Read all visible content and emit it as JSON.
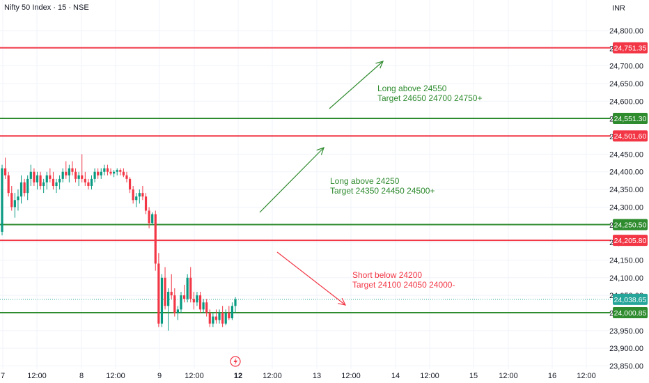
{
  "header": {
    "title": "Nifty 50 Index · 15 · NSE",
    "currency": "INR"
  },
  "colors": {
    "up": "#089981",
    "down": "#f23645",
    "grid": "#f0f3fa",
    "resistance": "#f23645",
    "support": "#2e8b2e",
    "last_price": "#26a69a",
    "axis_text": "#131722",
    "bolt": "#f23645"
  },
  "chart_data": {
    "type": "candlestick",
    "y_axis": {
      "min": 23850,
      "max": 24830,
      "ticks": [
        "24,800.00",
        "24,750.00",
        "24,700.00",
        "24,650.00",
        "24,600.00",
        "24,550.00",
        "24,500.00",
        "24,450.00",
        "24,400.00",
        "24,350.00",
        "24,300.00",
        "24,250.00",
        "24,200.00",
        "24,150.00",
        "24,100.00",
        "24,050.00",
        "24,000.00",
        "23,950.00",
        "23,900.00",
        "23,850.00"
      ]
    },
    "x_axis": {
      "ticks": [
        "7",
        "12:00",
        "8",
        "12:00",
        "9",
        "12:00",
        "12",
        "12:00",
        "13",
        "12:00",
        "14",
        "12:00",
        "15",
        "12:00",
        "16",
        "12:00"
      ]
    },
    "horizontal_lines": [
      {
        "value": 24751.35,
        "label": "24,751.35",
        "kind": "resistance"
      },
      {
        "value": 24551.3,
        "label": "24,551.30",
        "kind": "support"
      },
      {
        "value": 24501.6,
        "label": "24,501.60",
        "kind": "resistance"
      },
      {
        "value": 24250.5,
        "label": "24,250.50",
        "kind": "support"
      },
      {
        "value": 24205.8,
        "label": "24,205.80",
        "kind": "resistance"
      },
      {
        "value": 24000.85,
        "label": "24,000.85",
        "kind": "support"
      }
    ],
    "last_price": {
      "value": 24038.65,
      "label": "24,038.65"
    },
    "candles": [
      [
        24230,
        24420,
        24220,
        24410
      ],
      [
        24410,
        24440,
        24380,
        24390
      ],
      [
        24390,
        24400,
        24330,
        24340
      ],
      [
        24340,
        24360,
        24290,
        24300
      ],
      [
        24300,
        24340,
        24270,
        24320
      ],
      [
        24320,
        24350,
        24290,
        24330
      ],
      [
        24330,
        24390,
        24310,
        24370
      ],
      [
        24370,
        24380,
        24330,
        24340
      ],
      [
        24340,
        24390,
        24320,
        24380
      ],
      [
        24380,
        24420,
        24360,
        24400
      ],
      [
        24400,
        24410,
        24360,
        24370
      ],
      [
        24370,
        24400,
        24350,
        24390
      ],
      [
        24390,
        24400,
        24350,
        24360
      ],
      [
        24360,
        24380,
        24340,
        24370
      ],
      [
        24370,
        24400,
        24350,
        24390
      ],
      [
        24390,
        24410,
        24370,
        24380
      ],
      [
        24380,
        24400,
        24350,
        24360
      ],
      [
        24360,
        24380,
        24340,
        24370
      ],
      [
        24370,
        24390,
        24350,
        24380
      ],
      [
        24380,
        24410,
        24370,
        24400
      ],
      [
        24400,
        24430,
        24380,
        24390
      ],
      [
        24390,
        24420,
        24370,
        24410
      ],
      [
        24410,
        24430,
        24390,
        24400
      ],
      [
        24400,
        24410,
        24370,
        24380
      ],
      [
        24380,
        24400,
        24360,
        24390
      ],
      [
        24390,
        24450,
        24370,
        24380
      ],
      [
        24380,
        24400,
        24360,
        24370
      ],
      [
        24370,
        24380,
        24350,
        24360
      ],
      [
        24360,
        24390,
        24350,
        24380
      ],
      [
        24380,
        24410,
        24370,
        24400
      ],
      [
        24400,
        24410,
        24380,
        24390
      ],
      [
        24390,
        24410,
        24380,
        24400
      ],
      [
        24400,
        24420,
        24390,
        24410
      ],
      [
        24410,
        24420,
        24390,
        24400
      ],
      [
        24400,
        24410,
        24390,
        24395
      ],
      [
        24395,
        24405,
        24385,
        24400
      ],
      [
        24400,
        24410,
        24390,
        24405
      ],
      [
        24405,
        24410,
        24390,
        24400
      ],
      [
        24400,
        24410,
        24385,
        24390
      ],
      [
        24390,
        24400,
        24370,
        24380
      ],
      [
        24380,
        24385,
        24340,
        24350
      ],
      [
        24350,
        24360,
        24310,
        24320
      ],
      [
        24320,
        24340,
        24300,
        24330
      ],
      [
        24330,
        24350,
        24310,
        24340
      ],
      [
        24340,
        24360,
        24320,
        24330
      ],
      [
        24330,
        24340,
        24280,
        24290
      ],
      [
        24290,
        24300,
        24240,
        24255
      ],
      [
        24255,
        24285,
        24250,
        24280
      ],
      [
        24280,
        24290,
        24120,
        24140
      ],
      [
        24140,
        24170,
        23960,
        23970
      ],
      [
        23970,
        24110,
        23960,
        24100
      ],
      [
        24100,
        24130,
        24010,
        24020
      ],
      [
        24020,
        24070,
        23950,
        24060
      ],
      [
        24060,
        24110,
        24040,
        24050
      ],
      [
        24050,
        24070,
        23990,
        24000
      ],
      [
        24000,
        24020,
        23980,
        24010
      ],
      [
        24010,
        24060,
        24000,
        24050
      ],
      [
        24050,
        24080,
        24030,
        24040
      ],
      [
        24040,
        24110,
        24030,
        24100
      ],
      [
        24100,
        24130,
        24030,
        24040
      ],
      [
        24040,
        24060,
        24010,
        24030
      ],
      [
        24030,
        24060,
        24020,
        24050
      ],
      [
        24050,
        24060,
        24000,
        24010
      ],
      [
        24010,
        24040,
        24000,
        24030
      ],
      [
        24030,
        24040,
        23990,
        24000
      ],
      [
        24000,
        24010,
        23960,
        23970
      ],
      [
        23970,
        24000,
        23960,
        23990
      ],
      [
        23990,
        24010,
        23970,
        23980
      ],
      [
        23980,
        24010,
        23970,
        24000
      ],
      [
        24000,
        24020,
        23960,
        23970
      ],
      [
        23970,
        24010,
        23965,
        24000
      ],
      [
        24000,
        24020,
        23980,
        23985
      ],
      [
        23985,
        24030,
        23980,
        24020
      ],
      [
        24020,
        24045,
        24000,
        24039
      ]
    ],
    "annotations": [
      {
        "lines": [
          "Long above 24550",
          "Target 24650 24700 24750+"
        ],
        "kind": "long"
      },
      {
        "lines": [
          "Long above 24250",
          "Target 24350 24450 24500+"
        ],
        "kind": "long"
      },
      {
        "lines": [
          "Short below 24200",
          "Target 24100 24050 24000-"
        ],
        "kind": "short"
      }
    ]
  }
}
